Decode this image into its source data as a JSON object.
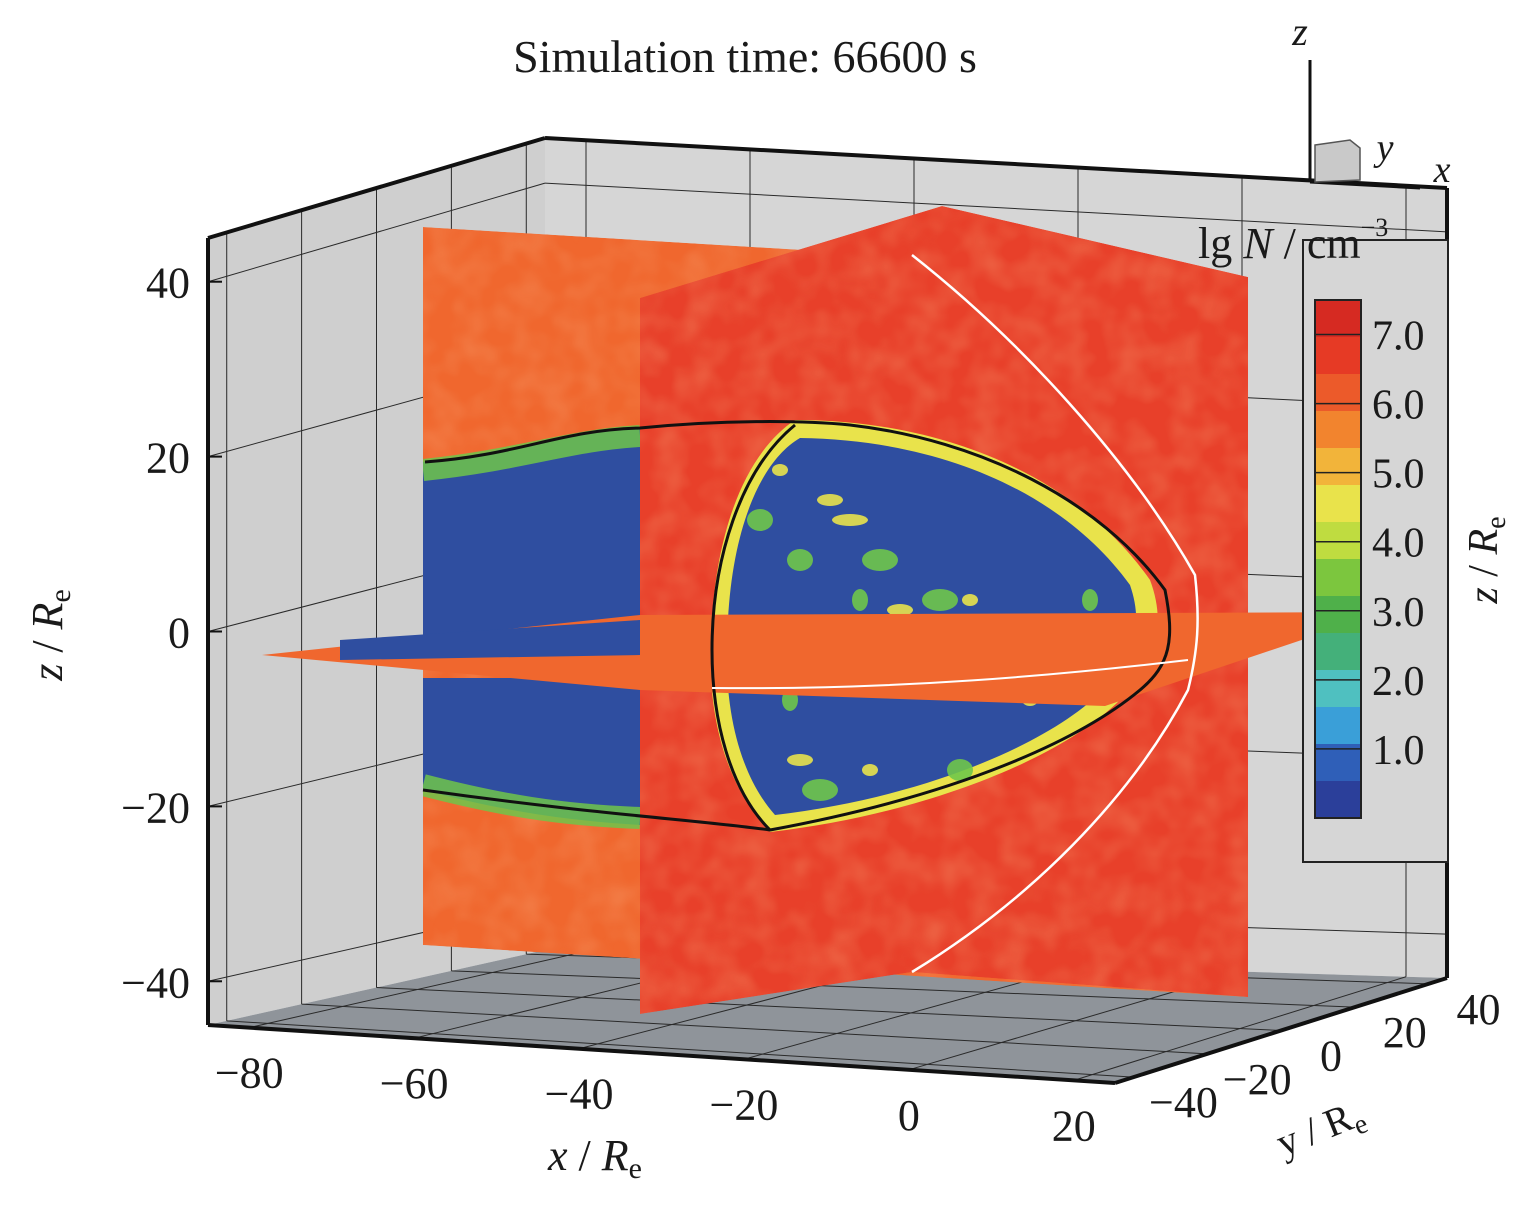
{
  "colors": {
    "wall_back": "#d6d6d6",
    "wall_left": "#cfcfcf",
    "floor": "#8f949a",
    "grid": "#2a2a2a",
    "red": "#e8402a",
    "orange": "#f0672e",
    "blue": "#2f4ea0",
    "green": "#6fc64a",
    "yellow": "#e9e34b",
    "magnetopause": "#111111",
    "bow_shock": "#ffffff"
  },
  "chart_data": {
    "type": "heatmap",
    "title": "Simulation time: 66600 s",
    "quantity": {
      "prefix": "lg ",
      "symbol": "N",
      "unit": " / cm",
      "exponent": "−3"
    },
    "x_axis": {
      "label_var": "x",
      "label_unit": "R",
      "label_sub": "e",
      "ticks": [
        "−80",
        "−60",
        "−40",
        "−20",
        "0",
        "20"
      ],
      "tick_values": [
        -80,
        -60,
        -40,
        -20,
        0,
        20
      ],
      "range": [
        -85,
        25
      ]
    },
    "y_axis": {
      "label": "y / R",
      "label_sub": "e",
      "ticks": [
        "−40",
        "−20",
        "0",
        "20",
        "40"
      ],
      "tick_values": [
        -40,
        -20,
        0,
        20,
        40
      ],
      "range": [
        -45,
        45
      ]
    },
    "z_axis": {
      "label_var": "z",
      "label_unit": "R",
      "label_sub": "e",
      "ticks": [
        "40",
        "20",
        "0",
        "−20",
        "−40"
      ],
      "tick_values": [
        40,
        20,
        0,
        -20,
        -40
      ],
      "range": [
        -45,
        45
      ]
    },
    "colorbar": {
      "ticks": [
        "7.0",
        "6.0",
        "5.0",
        "4.0",
        "3.0",
        "2.0",
        "1.0"
      ],
      "tick_values": [
        7,
        6,
        5,
        4,
        3,
        2,
        1
      ],
      "range": [
        0,
        7.5
      ],
      "colors": [
        "#2b3f9a",
        "#2f5fb8",
        "#3a9fd8",
        "#4fc0c0",
        "#44b07a",
        "#4fb04a",
        "#7cc63e",
        "#bfdc40",
        "#e9e34b",
        "#f2b43a",
        "#f2842e",
        "#ec5a2a",
        "#e63a25",
        "#d62a22"
      ],
      "side_label_var": "z",
      "side_label_unit": "R",
      "side_label_sub": "e"
    },
    "orientation_axes": [
      "z",
      "y",
      "x"
    ],
    "grid": true
  }
}
